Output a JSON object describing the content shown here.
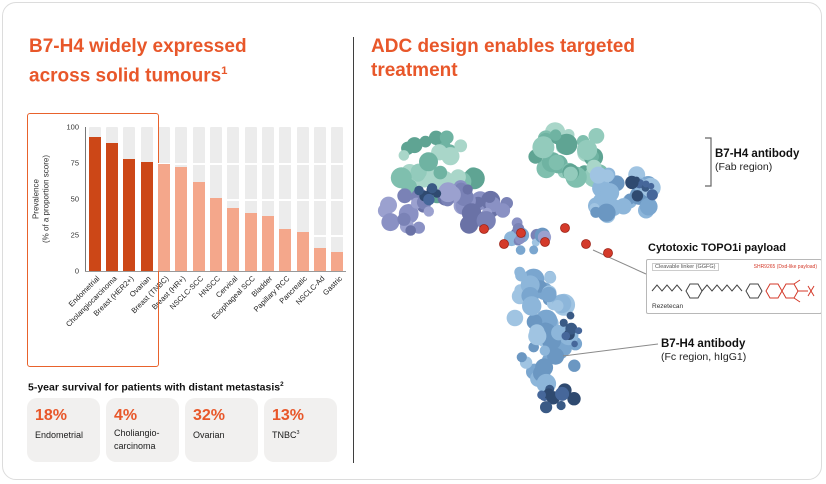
{
  "theme": {
    "accent_orange": "#E8572A",
    "bar_highlight": "#CC4717",
    "bar_normal": "#F4A78B",
    "bar_track": "#ECECEC",
    "payload_red": "#D43A2A"
  },
  "left": {
    "title_line1": "B7-H4 widely expressed",
    "title_line2": "across solid tumours",
    "title_sup": "1",
    "survival_heading": "5-year survival for patients with distant metastasis",
    "survival_sup": "2",
    "cards": [
      {
        "pct": "18%",
        "label": "Endometrial",
        "sup": ""
      },
      {
        "pct": "4%",
        "label": "Choliangio-carcinoma",
        "sup": ""
      },
      {
        "pct": "32%",
        "label": "Ovarian",
        "sup": ""
      },
      {
        "pct": "13%",
        "label": "TNBC",
        "sup": "3"
      }
    ]
  },
  "chart_data": {
    "type": "bar",
    "title": "",
    "xlabel": "",
    "ylabel": "Prevalence (% of a proportion score)",
    "ylabel_lines": [
      "Prevalence",
      "(% of a proportion score)"
    ],
    "ylim": [
      0,
      100
    ],
    "yticks": [
      0,
      25,
      50,
      75,
      100
    ],
    "categories": [
      "Endometrial",
      "Cholangiocarcinoma",
      "Breast (HER2+)",
      "Ovarian",
      "Breast (TNBC)",
      "Breast (HR+)",
      "NSCLC-SCC",
      "HNSCC",
      "Cervical",
      "Esophageal SCC",
      "Bladder",
      "Papillary RCC",
      "Pancreatic",
      "NSCLC-Ad",
      "Gastric"
    ],
    "values": [
      93,
      89,
      78,
      76,
      74,
      72,
      62,
      51,
      44,
      40,
      38,
      29,
      27,
      16,
      13
    ],
    "highlight_count": 4,
    "colors": {
      "highlight": "#CC4717",
      "normal": "#F4A78B",
      "track": "#ECECEC"
    },
    "grid": "horizontal-white",
    "legend": "none"
  },
  "right": {
    "title_line1": "ADC design enables targeted",
    "title_line2": "treatment",
    "fab_label_bold": "B7-H4 antibody",
    "fab_label_sub": "(Fab region)",
    "payload_title": "Cytotoxic TOPO1i payload",
    "payload_linker": "Cleavable linker (GGFG)",
    "payload_drug": "SHR9265 (Dxd-like payload)",
    "payload_name": "Rezetecan",
    "fc_label_bold": "B7-H4 antibody",
    "fc_label_sub": "(Fc region, hIgG1)"
  }
}
